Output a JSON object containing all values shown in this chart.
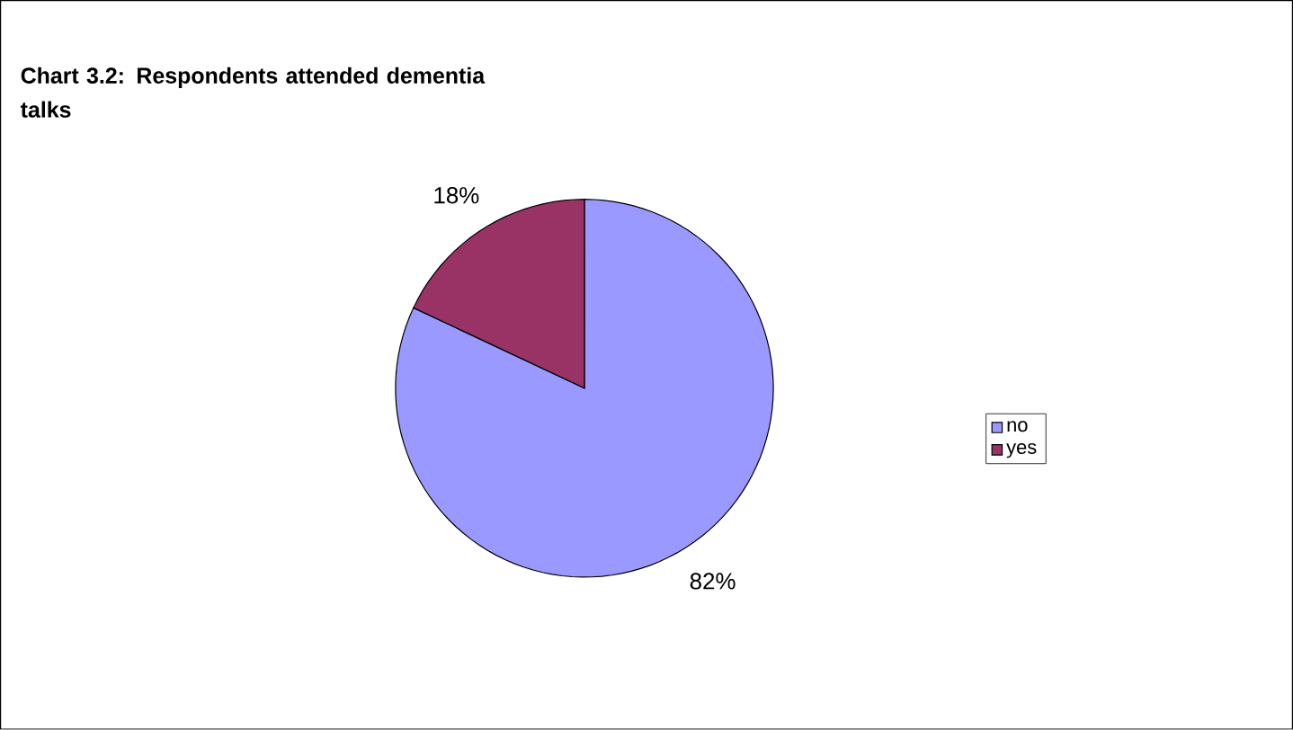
{
  "chart_data": {
    "type": "pie",
    "title": "Chart 3.2: Respondents attended dementia talks",
    "categories": [
      "no",
      "yes"
    ],
    "values": [
      82,
      18
    ],
    "colors": [
      "#9999ff",
      "#993366"
    ],
    "value_labels": [
      "82%",
      "18%"
    ],
    "legend": "right"
  }
}
